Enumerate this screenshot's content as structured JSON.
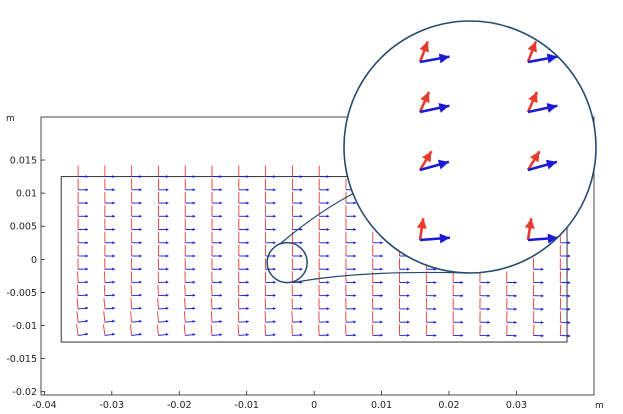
{
  "chart_data": {
    "type": "vector-field",
    "title": "",
    "xlabel": "m",
    "ylabel": "m",
    "xlim": [
      -0.0405,
      0.0415
    ],
    "ylim": [
      -0.0205,
      0.0215
    ],
    "x_ticks": [
      -0.04,
      -0.03,
      -0.02,
      -0.01,
      0,
      0.01,
      0.02,
      0.03
    ],
    "x_tick_labels": [
      "-0.04",
      "-0.03",
      "-0.02",
      "-0.01",
      "0",
      "0.01",
      "0.02",
      "0.03"
    ],
    "y_ticks": [
      0.015,
      0.01,
      0.005,
      0,
      -0.005,
      -0.01,
      -0.015,
      -0.02
    ],
    "y_tick_labels": [
      "0.015",
      "0.01",
      "0.005",
      "0",
      "-0.005",
      "-0.01",
      "-0.015",
      "-0.02"
    ],
    "domain_rect": {
      "x": [
        -0.0375,
        0.0375
      ],
      "y": [
        -0.0125,
        0.0125
      ]
    },
    "grid": false,
    "series": [
      {
        "color": "#e83a2e",
        "grid_nx": 19,
        "grid_ny": 13,
        "x_range": [
          -0.035,
          0.0365
        ],
        "y_range": [
          -0.0115,
          0.0125
        ]
      },
      {
        "color": "#1a1ad6",
        "grid_nx": 19,
        "grid_ny": 13,
        "x_range": [
          -0.035,
          0.0365
        ],
        "y_range": [
          -0.0115,
          0.0125
        ]
      }
    ],
    "zoom_region": {
      "center": [
        -0.004,
        -0.0005
      ],
      "radius": 0.003
    },
    "colors": {
      "axes": "#222222",
      "domain": "#333333",
      "zoom_outline": "#244a6e"
    }
  }
}
